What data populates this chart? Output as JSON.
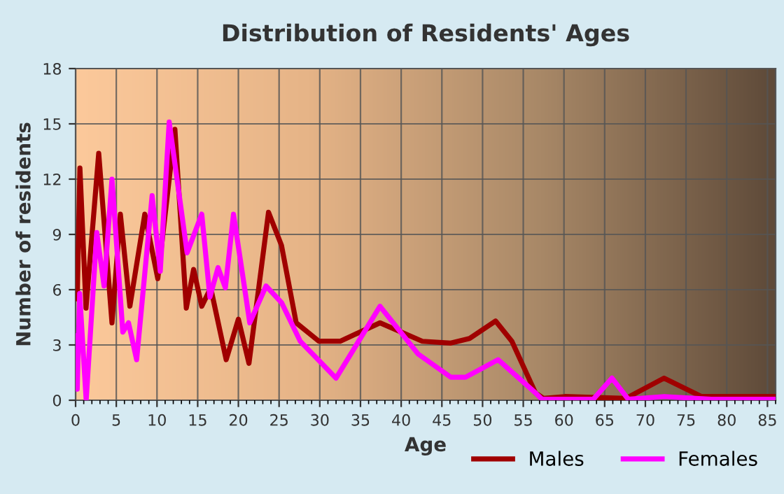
{
  "chart_data": {
    "type": "line",
    "title": "Distribution of Residents' Ages",
    "xlabel": "Age",
    "ylabel": "Number of residents",
    "xlim": [
      0,
      86
    ],
    "xticks": [
      0,
      5,
      10,
      15,
      20,
      25,
      30,
      35,
      40,
      45,
      50,
      55,
      60,
      65,
      70,
      75,
      80,
      85
    ],
    "ylim": [
      0,
      18
    ],
    "yticks": [
      0,
      3,
      6,
      9,
      12,
      15,
      18
    ],
    "grid": true,
    "legend": "bottom right",
    "marker": "none",
    "line_style": "solid",
    "series": [
      {
        "name": "Males",
        "color": "#a00000",
        "x": [
          0,
          0.2,
          0.53,
          1.28,
          2.84,
          4.47,
          5.5,
          6.67,
          8.5,
          10.1,
          12.2,
          13.6,
          14.5,
          15.5,
          16.6,
          18.5,
          20.0,
          21.3,
          23.7,
          25.3,
          27.1,
          29.9,
          32.5,
          37.4,
          42.6,
          46.1,
          48.4,
          51.6,
          53.6,
          56.5,
          57.5,
          60.1,
          67.6,
          72.3,
          76.9,
          86
        ],
        "values": [
          7.2,
          5.5,
          12.6,
          5.0,
          13.4,
          4.2,
          10.1,
          5.1,
          10.1,
          6.6,
          14.7,
          5.0,
          7.1,
          5.1,
          6.1,
          2.2,
          4.4,
          2.0,
          10.2,
          8.4,
          4.2,
          3.2,
          3.2,
          4.2,
          3.2,
          3.1,
          3.35,
          4.3,
          3.2,
          0.4,
          0.1,
          0.2,
          0.1,
          1.2,
          0.2,
          0.2
        ]
      },
      {
        "name": "Females",
        "color": "#ff00ff",
        "x": [
          0,
          0.2,
          0.5,
          1.3,
          2.6,
          3.5,
          4.47,
          5.8,
          6.5,
          7.5,
          9.4,
          10.4,
          11.5,
          13.7,
          15.5,
          16.5,
          17.5,
          18.4,
          19.4,
          21.4,
          23.4,
          25.3,
          27.6,
          32.0,
          37.4,
          42.1,
          46.1,
          47.9,
          51.9,
          56.5,
          57.3,
          63.6,
          65.9,
          67.9,
          72.3,
          78.1,
          86
        ],
        "values": [
          3.5,
          0.6,
          5.8,
          0,
          9.1,
          6.2,
          12.0,
          3.7,
          4.2,
          2.2,
          11.1,
          7.0,
          15.1,
          8.0,
          10.1,
          5.6,
          7.2,
          6.1,
          10.1,
          4.2,
          6.2,
          5.3,
          3.2,
          1.2,
          5.1,
          2.5,
          1.25,
          1.25,
          2.2,
          0.4,
          0.05,
          0.05,
          1.2,
          0.05,
          0.2,
          0.05,
          0.05
        ]
      }
    ]
  }
}
